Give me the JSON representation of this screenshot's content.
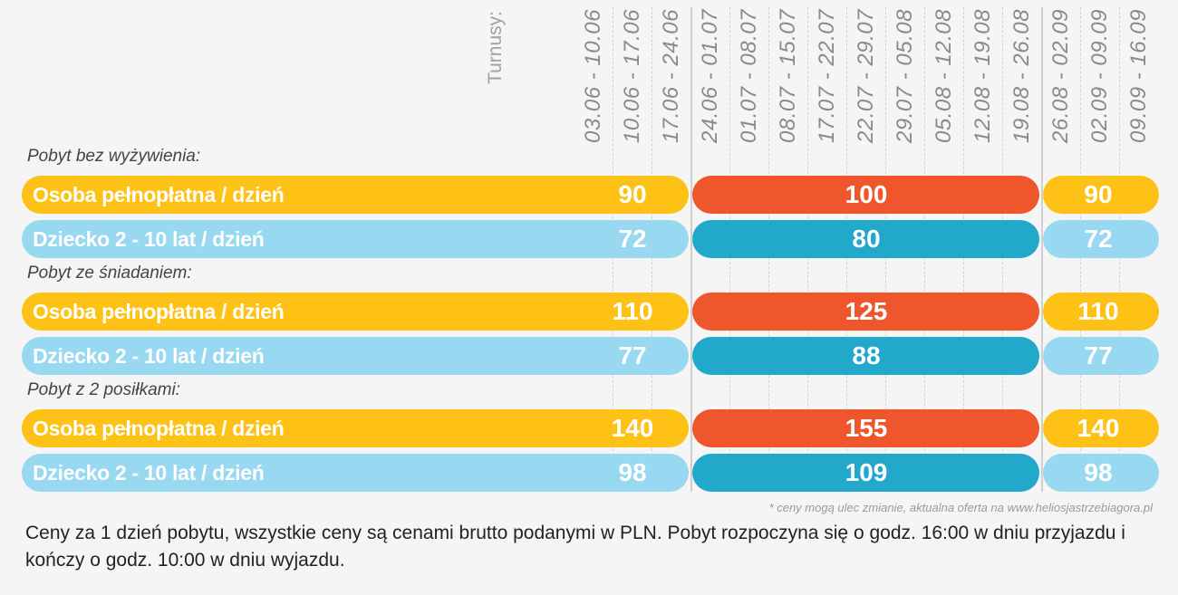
{
  "header": {
    "turnusy_label": "Turnusy:",
    "turnusy": [
      "03.06 - 10.06",
      "10.06 - 17.06",
      "17.06 - 24.06",
      "24.06 - 01.07",
      "01.07 - 08.07",
      "08.07 - 15.07",
      "17.07 - 22.07",
      "22.07 - 29.07",
      "29.07 - 05.08",
      "05.08 - 12.08",
      "12.08 - 19.08",
      "19.08 - 26.08",
      "26.08 - 02.09",
      "02.09 - 09.09",
      "09.09 - 16.09"
    ]
  },
  "sections": [
    {
      "title": "Pobyt bez wyżywienia:",
      "rows": [
        {
          "label": "Osoba pełnopłatna / dzień",
          "type": "adult",
          "prices": [
            "90",
            "100",
            "90"
          ]
        },
        {
          "label": "Dziecko 2 - 10 lat / dzień",
          "type": "child",
          "prices": [
            "72",
            "80",
            "72"
          ]
        }
      ]
    },
    {
      "title": "Pobyt ze śniadaniem:",
      "rows": [
        {
          "label": "Osoba pełnopłatna / dzień",
          "type": "adult",
          "prices": [
            "110",
            "125",
            "110"
          ]
        },
        {
          "label": "Dziecko 2 - 10 lat / dzień",
          "type": "child",
          "prices": [
            "77",
            "88",
            "77"
          ]
        }
      ]
    },
    {
      "title": "Pobyt z 2 posiłkami:",
      "rows": [
        {
          "label": "Osoba pełnopłatna / dzień",
          "type": "adult",
          "prices": [
            "140",
            "155",
            "140"
          ]
        },
        {
          "label": "Dziecko 2 - 10 lat / dzień",
          "type": "child",
          "prices": [
            "98",
            "109",
            "98"
          ]
        }
      ]
    }
  ],
  "colors": {
    "adult_low": "#fdc215",
    "adult_peak": "#f0562b",
    "child_low": "#98d8f0",
    "child_peak": "#21a8ca"
  },
  "footnote": "* ceny mogą ulec zmianie, aktualna oferta na www.heliosjastrzebiagora.pl",
  "description": "Ceny za 1 dzień pobytu, wszystkie ceny są cenami brutto podanymi w PLN. Pobyt rozpoczyna się o godz. 16:00 w dniu przyjazdu i kończy o godz. 10:00 w dniu wyjazdu."
}
